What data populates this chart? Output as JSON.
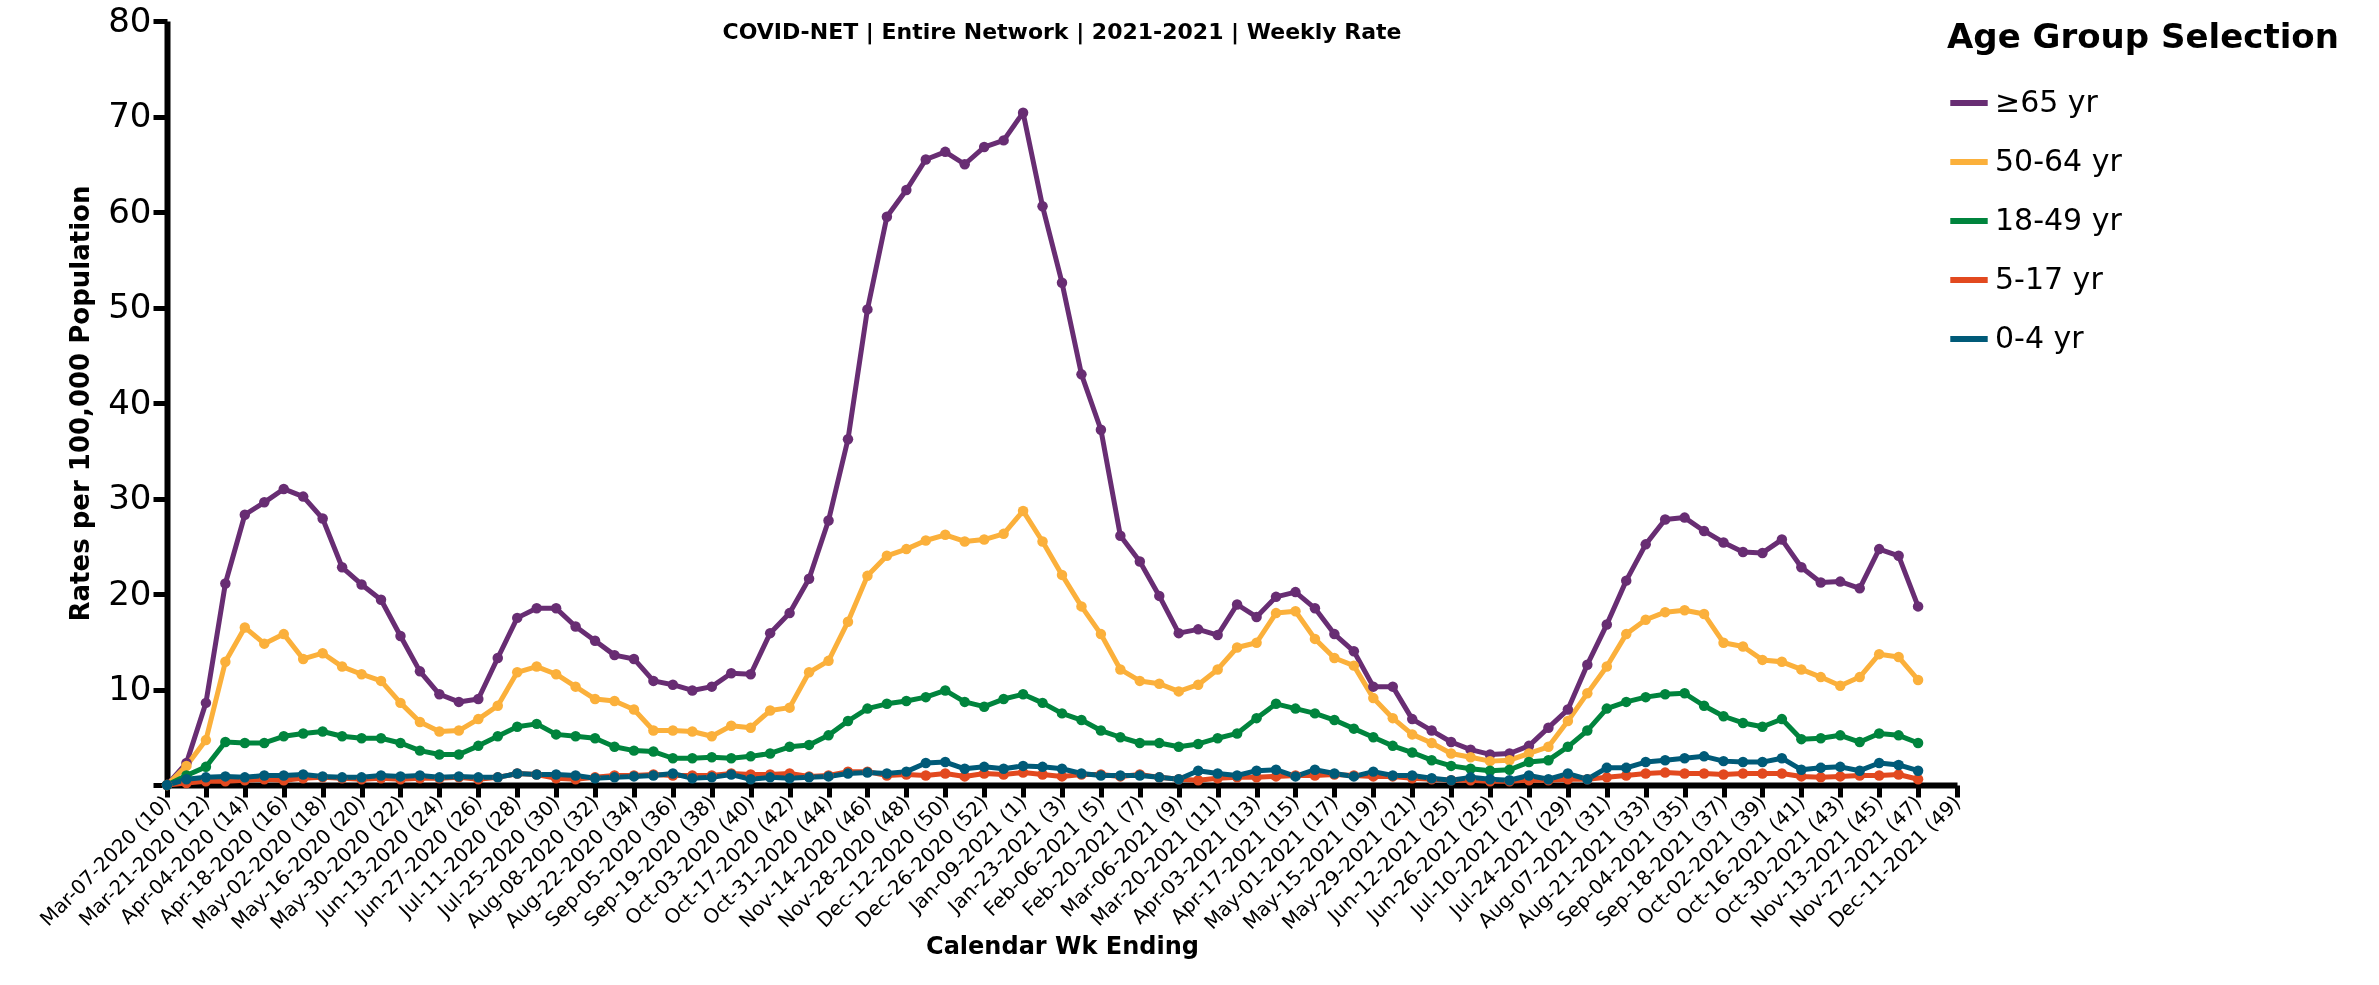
{
  "chart_data": {
    "type": "line",
    "title": "COVID-NET | Entire Network | 2021-2021 | Weekly Rate",
    "xlabel": "Calendar Wk Ending",
    "ylabel": "Rates per 100,000 Population",
    "legend_title": "Age Group Selection",
    "categories": [
      "Mar-07-2020 (10)",
      null,
      "Mar-21-2020 (12)",
      null,
      "Apr-04-2020 (14)",
      null,
      "Apr-18-2020 (16)",
      null,
      "May-02-2020 (18)",
      null,
      "May-16-2020 (20)",
      null,
      "May-30-2020 (22)",
      null,
      "Jun-13-2020 (24)",
      null,
      "Jun-27-2020 (26)",
      null,
      "Jul-11-2020 (28)",
      null,
      "Jul-25-2020 (30)",
      null,
      "Aug-08-2020 (32)",
      null,
      "Aug-22-2020 (34)",
      null,
      "Sep-05-2020 (36)",
      null,
      "Sep-19-2020 (38)",
      null,
      "Oct-03-2020 (40)",
      null,
      "Oct-17-2020 (42)",
      null,
      "Oct-31-2020 (44)",
      null,
      "Nov-14-2020 (46)",
      null,
      "Nov-28-2020 (48)",
      null,
      "Dec-12-2020 (50)",
      null,
      "Dec-26-2020 (52)",
      null,
      "Jan-09-2021 (1)",
      null,
      "Jan-23-2021 (3)",
      null,
      "Feb-06-2021 (5)",
      null,
      "Feb-20-2021 (7)",
      null,
      "Mar-06-2021 (9)",
      null,
      "Mar-20-2021 (11)",
      null,
      "Apr-03-2021 (13)",
      null,
      "Apr-17-2021 (15)",
      null,
      "May-01-2021 (17)",
      null,
      "May-15-2021 (19)",
      null,
      "May-29-2021 (21)",
      null,
      "Jun-12-2021 (25)",
      null,
      "Jun-26-2021 (25)",
      null,
      "Jul-10-2021 (27)",
      null,
      "Jul-24-2021 (29)",
      null,
      "Aug-07-2021 (31)",
      null,
      "Aug-21-2021 (33)",
      null,
      "Sep-04-2021 (35)",
      null,
      "Sep-18-2021 (37)",
      null,
      "Oct-02-2021 (39)",
      null,
      "Oct-16-2021 (41)",
      null,
      "Oct-30-2021 (43)",
      null,
      "Nov-13-2021 (45)",
      null,
      "Nov-27-2021 (47)",
      null,
      "Dec-11-2021 (49)"
    ],
    "series": [
      {
        "name": "≥65 yr",
        "color": "#682d73",
        "values": [
          0,
          2.3,
          8.6,
          21.1,
          28.3,
          29.6,
          31.0,
          30.2,
          27.9,
          22.8,
          21.0,
          19.4,
          15.6,
          11.9,
          9.5,
          8.7,
          9.0,
          13.3,
          17.5,
          18.5,
          18.5,
          16.6,
          15.1,
          13.6,
          13.2,
          10.9,
          10.5,
          9.9,
          10.3,
          11.7,
          11.6,
          15.9,
          18.0,
          21.6,
          27.7,
          36.2,
          49.8,
          59.5,
          62.3,
          65.5,
          66.3,
          65.0,
          66.8,
          67.5,
          70.4,
          60.6,
          52.6,
          43.0,
          37.2,
          26.1,
          23.4,
          19.8,
          15.9,
          16.3,
          15.7,
          18.9,
          17.6,
          19.7,
          20.2,
          18.5,
          15.8,
          14.0,
          10.3,
          10.3,
          6.9,
          5.7,
          4.5,
          3.7,
          3.2,
          3.3,
          4.1,
          6.0,
          7.9,
          12.6,
          16.8,
          21.4,
          25.2,
          27.8,
          28.0,
          26.6,
          25.4,
          24.4,
          24.3,
          25.7,
          22.8,
          21.2,
          21.3,
          20.6,
          24.7,
          24.0,
          18.7,
          null,
          null
        ]
      },
      {
        "name": "50-64 yr",
        "color": "#fbb03b",
        "values": [
          0,
          2.0,
          4.7,
          12.9,
          16.5,
          14.8,
          15.8,
          13.2,
          13.8,
          12.4,
          11.6,
          10.9,
          8.6,
          6.6,
          5.6,
          5.7,
          6.9,
          8.3,
          11.8,
          12.4,
          11.6,
          10.3,
          9.0,
          8.8,
          7.9,
          5.7,
          5.7,
          5.6,
          5.1,
          6.2,
          6.0,
          7.8,
          8.1,
          11.8,
          13.0,
          17.1,
          21.9,
          24.0,
          24.7,
          25.6,
          26.2,
          25.5,
          25.7,
          26.3,
          28.7,
          25.5,
          22.0,
          18.7,
          15.8,
          12.1,
          10.9,
          10.6,
          9.8,
          10.5,
          12.1,
          14.4,
          14.9,
          18.0,
          18.2,
          15.3,
          13.3,
          12.5,
          9.1,
          7.0,
          5.3,
          4.4,
          3.3,
          2.9,
          2.5,
          2.6,
          3.3,
          4.0,
          6.7,
          9.6,
          12.4,
          15.8,
          17.3,
          18.1,
          18.3,
          17.9,
          14.9,
          14.5,
          13.1,
          12.9,
          12.1,
          11.3,
          10.4,
          11.3,
          13.7,
          13.4,
          11.0,
          null,
          null
        ]
      },
      {
        "name": "18-49 yr",
        "color": "#00843d",
        "values": [
          0,
          1.0,
          1.9,
          4.5,
          4.4,
          4.4,
          5.1,
          5.4,
          5.6,
          5.1,
          4.9,
          4.9,
          4.4,
          3.6,
          3.2,
          3.2,
          4.1,
          5.1,
          6.1,
          6.4,
          5.3,
          5.1,
          4.9,
          4.0,
          3.6,
          3.5,
          2.8,
          2.8,
          2.9,
          2.8,
          3.0,
          3.3,
          4.0,
          4.2,
          5.2,
          6.7,
          8.0,
          8.5,
          8.8,
          9.2,
          9.9,
          8.7,
          8.2,
          9.0,
          9.5,
          8.6,
          7.5,
          6.8,
          5.7,
          5.0,
          4.4,
          4.4,
          4.0,
          4.3,
          4.9,
          5.4,
          7.0,
          8.5,
          8.0,
          7.5,
          6.8,
          5.9,
          5.0,
          4.1,
          3.4,
          2.6,
          2.0,
          1.7,
          1.5,
          1.6,
          2.4,
          2.6,
          4.0,
          5.7,
          8.0,
          8.7,
          9.2,
          9.5,
          9.6,
          8.3,
          7.2,
          6.5,
          6.1,
          6.9,
          4.8,
          4.9,
          5.2,
          4.5,
          5.4,
          5.2,
          4.4,
          null,
          null
        ]
      },
      {
        "name": "5-17 yr",
        "color": "#e2491f",
        "values": [
          0,
          0.2,
          0.4,
          0.4,
          0.5,
          0.6,
          0.5,
          0.7,
          0.8,
          0.7,
          0.6,
          0.7,
          0.6,
          0.7,
          0.7,
          0.8,
          0.6,
          0.8,
          1.2,
          1.1,
          0.7,
          0.6,
          0.8,
          1.0,
          1.0,
          1.1,
          1.0,
          1.0,
          1.0,
          1.2,
          1.1,
          1.1,
          1.2,
          0.9,
          1.0,
          1.4,
          1.4,
          1.0,
          1.1,
          1.0,
          1.2,
          0.9,
          1.2,
          1.1,
          1.3,
          1.1,
          0.9,
          1.1,
          1.1,
          0.9,
          1.1,
          0.8,
          0.6,
          0.5,
          0.7,
          0.8,
          0.8,
          0.9,
          1.0,
          1.0,
          1.1,
          1.0,
          0.9,
          0.9,
          0.7,
          0.6,
          0.5,
          0.5,
          0.4,
          0.4,
          0.5,
          0.5,
          0.6,
          0.6,
          0.8,
          1.0,
          1.2,
          1.3,
          1.2,
          1.2,
          1.1,
          1.2,
          1.2,
          1.2,
          0.9,
          0.8,
          0.9,
          1.0,
          1.0,
          1.1,
          0.6,
          null,
          null
        ]
      },
      {
        "name": "0-4 yr",
        "color": "#005a78",
        "values": [
          0,
          0.6,
          0.8,
          0.9,
          0.8,
          1.0,
          1.0,
          1.1,
          0.9,
          0.8,
          0.8,
          1.0,
          0.9,
          1.0,
          0.8,
          0.9,
          0.8,
          0.8,
          1.2,
          1.1,
          1.1,
          1.0,
          0.7,
          0.8,
          0.9,
          1.0,
          1.2,
          0.7,
          0.8,
          1.1,
          0.6,
          0.8,
          0.7,
          0.8,
          0.9,
          1.2,
          1.3,
          1.2,
          1.4,
          2.3,
          2.4,
          1.7,
          1.9,
          1.7,
          2.0,
          1.9,
          1.7,
          1.2,
          1.0,
          1.0,
          1.0,
          0.8,
          0.6,
          1.5,
          1.2,
          1.0,
          1.5,
          1.6,
          0.9,
          1.6,
          1.2,
          0.9,
          1.4,
          1.0,
          1.0,
          0.7,
          0.5,
          0.8,
          0.6,
          0.5,
          1.0,
          0.6,
          1.2,
          0.6,
          1.8,
          1.8,
          2.4,
          2.6,
          2.8,
          3.0,
          2.5,
          2.4,
          2.4,
          2.8,
          1.6,
          1.8,
          1.9,
          1.5,
          2.3,
          2.1,
          1.5,
          null,
          null
        ]
      }
    ],
    "ylim": [
      0,
      80
    ],
    "yticks": [
      {
        "value": 0,
        "label": null
      },
      10,
      20,
      30,
      40,
      50,
      60,
      70,
      80
    ],
    "grid": false,
    "legend": "right",
    "marker": "circle",
    "line_style": "solid"
  }
}
